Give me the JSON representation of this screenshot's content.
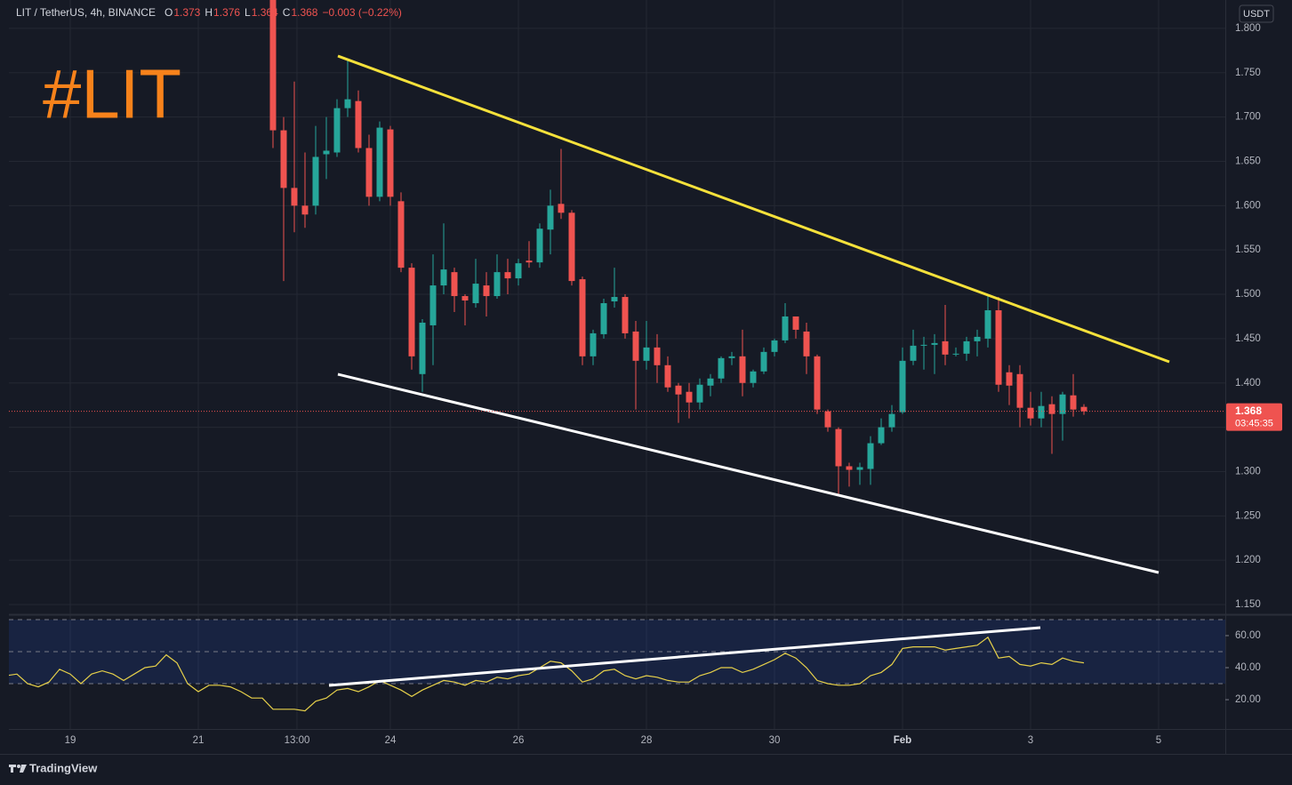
{
  "header": {
    "symbol": "LIT / TetherUS, 4h, BINANCE",
    "ohlc": [
      {
        "key": "O",
        "value": 1.373
      },
      {
        "key": "H",
        "value": 1.376
      },
      {
        "key": "L",
        "value": 1.364
      },
      {
        "key": "C",
        "value": 1.368
      }
    ],
    "change": "−0.003 (−0.22%)"
  },
  "annotation": "#LIT",
  "brand": "TradingView",
  "chart_data": {
    "type": "candlestick",
    "currency": "USDT",
    "xlim": [
      0.25,
      114.25
    ],
    "xticks": [
      {
        "value": 6,
        "label": "19"
      },
      {
        "value": 18,
        "label": "21"
      },
      {
        "value": 27.25,
        "label": "13:00"
      },
      {
        "value": 36,
        "label": "24"
      },
      {
        "value": 48,
        "label": "26"
      },
      {
        "value": 60,
        "label": "28"
      },
      {
        "value": 72,
        "label": "30"
      },
      {
        "value": 84,
        "label": "Feb"
      },
      {
        "value": 96,
        "label": "3"
      },
      {
        "value": 108,
        "label": "5"
      }
    ],
    "ylim": [
      1.14,
      1.832
    ],
    "yticks": [
      {
        "value": 1.8,
        "label": "1.800"
      },
      {
        "value": 1.75,
        "label": "1.750"
      },
      {
        "value": 1.7,
        "label": "1.700"
      },
      {
        "value": 1.65,
        "label": "1.650"
      },
      {
        "value": 1.6,
        "label": "1.600"
      },
      {
        "value": 1.55,
        "label": "1.550"
      },
      {
        "value": 1.5,
        "label": "1.500"
      },
      {
        "value": 1.45,
        "label": "1.450"
      },
      {
        "value": 1.4,
        "label": "1.400"
      },
      {
        "value": 1.35,
        "label": "1.350"
      },
      {
        "value": 1.3,
        "label": "1.300"
      },
      {
        "value": 1.25,
        "label": "1.250"
      },
      {
        "value": 1.2,
        "label": "1.200"
      },
      {
        "value": 1.15,
        "label": "1.150"
      }
    ],
    "grid": true,
    "up_color": "#26a69a",
    "down_color": "#ef5350",
    "series": {
      "open": [
        null,
        null,
        null,
        null,
        null,
        null,
        null,
        null,
        null,
        null,
        null,
        null,
        null,
        null,
        null,
        null,
        null,
        null,
        null,
        null,
        null,
        null,
        null,
        null,
        null,
        1.86,
        1.685,
        1.62,
        1.6,
        1.6,
        1.658,
        1.66,
        1.71,
        1.718,
        1.665,
        1.61,
        1.686,
        1.605,
        1.53,
        1.41,
        1.465,
        1.51,
        1.525,
        1.498,
        1.49,
        1.51,
        1.498,
        1.525,
        1.518,
        1.538,
        1.536,
        1.573,
        1.602,
        1.592,
        1.517,
        1.43,
        1.455,
        1.492,
        1.497,
        1.458,
        1.425,
        1.44,
        1.42,
        1.397,
        1.39,
        1.378,
        1.397,
        1.405,
        1.428,
        1.43,
        1.4,
        1.413,
        1.435,
        1.448,
        1.475,
        1.458,
        1.43,
        1.368,
        1.348,
        1.306,
        1.302,
        1.303,
        1.332,
        1.35,
        1.367,
        1.425,
        1.442,
        1.443,
        1.447,
        1.432,
        1.433,
        1.447,
        1.45,
        1.482,
        1.412,
        1.41,
        1.372,
        1.36,
        1.376,
        1.365,
        1.386,
        1.373
      ],
      "high": [
        null,
        null,
        null,
        null,
        null,
        null,
        null,
        null,
        null,
        null,
        null,
        null,
        null,
        null,
        null,
        null,
        null,
        null,
        null,
        null,
        null,
        null,
        null,
        null,
        null,
        1.88,
        1.7,
        1.74,
        1.66,
        1.69,
        1.7,
        1.72,
        1.765,
        1.73,
        1.68,
        1.695,
        1.69,
        1.615,
        1.535,
        1.472,
        1.545,
        1.58,
        1.53,
        1.5,
        1.54,
        1.525,
        1.545,
        1.54,
        1.54,
        1.56,
        1.58,
        1.618,
        1.664,
        1.595,
        1.52,
        1.46,
        1.495,
        1.53,
        1.5,
        1.47,
        1.47,
        1.455,
        1.43,
        1.4,
        1.4,
        1.405,
        1.41,
        1.43,
        1.435,
        1.46,
        1.415,
        1.44,
        1.45,
        1.49,
        1.475,
        1.468,
        1.432,
        1.37,
        1.35,
        1.31,
        1.31,
        1.34,
        1.36,
        1.375,
        1.44,
        1.46,
        1.452,
        1.455,
        1.488,
        1.44,
        1.452,
        1.46,
        1.5,
        1.497,
        1.42,
        1.42,
        1.39,
        1.39,
        1.385,
        1.39,
        1.41,
        1.376
      ],
      "low": [
        null,
        null,
        null,
        null,
        null,
        null,
        null,
        null,
        null,
        null,
        null,
        null,
        null,
        null,
        null,
        null,
        null,
        null,
        null,
        null,
        null,
        null,
        null,
        null,
        null,
        1.665,
        1.515,
        1.57,
        1.575,
        1.59,
        1.63,
        1.655,
        1.7,
        1.66,
        1.6,
        1.605,
        1.6,
        1.525,
        1.415,
        1.39,
        1.42,
        1.5,
        1.48,
        1.465,
        1.485,
        1.475,
        1.495,
        1.5,
        1.51,
        1.53,
        1.53,
        1.545,
        1.585,
        1.51,
        1.42,
        1.42,
        1.45,
        1.485,
        1.45,
        1.37,
        1.415,
        1.4,
        1.39,
        1.355,
        1.36,
        1.37,
        1.385,
        1.4,
        1.42,
        1.385,
        1.395,
        1.41,
        1.43,
        1.445,
        1.45,
        1.41,
        1.365,
        1.345,
        1.275,
        1.283,
        1.285,
        1.285,
        1.33,
        1.345,
        1.365,
        1.42,
        1.415,
        1.41,
        1.42,
        1.43,
        1.425,
        1.43,
        1.44,
        1.39,
        1.375,
        1.35,
        1.352,
        1.35,
        1.32,
        1.335,
        1.362,
        1.364
      ],
      "close": [
        null,
        null,
        null,
        null,
        null,
        null,
        null,
        null,
        null,
        null,
        null,
        null,
        null,
        null,
        null,
        null,
        null,
        null,
        null,
        null,
        null,
        null,
        null,
        null,
        null,
        1.685,
        1.62,
        1.6,
        1.59,
        1.655,
        1.662,
        1.71,
        1.72,
        1.665,
        1.61,
        1.688,
        1.61,
        1.53,
        1.43,
        1.468,
        1.51,
        1.528,
        1.498,
        1.493,
        1.512,
        1.498,
        1.525,
        1.518,
        1.535,
        1.536,
        1.574,
        1.6,
        1.592,
        1.515,
        1.43,
        1.456,
        1.49,
        1.497,
        1.456,
        1.425,
        1.44,
        1.42,
        1.395,
        1.387,
        1.378,
        1.398,
        1.405,
        1.428,
        1.43,
        1.4,
        1.413,
        1.435,
        1.448,
        1.475,
        1.46,
        1.43,
        1.37,
        1.35,
        1.306,
        1.302,
        1.305,
        1.332,
        1.35,
        1.365,
        1.425,
        1.442,
        1.443,
        1.445,
        1.432,
        1.433,
        1.447,
        1.452,
        1.482,
        1.398,
        1.397,
        1.372,
        1.36,
        1.374,
        1.365,
        1.387,
        1.37,
        1.368
      ]
    },
    "last_price": 1.368,
    "countdown": "03:45:35",
    "rsi": {
      "color": "#e6d04a",
      "ylim": [
        1.7,
        72.2
      ],
      "yticks": [
        {
          "value": 60,
          "label": "60.00"
        },
        {
          "value": 40,
          "label": "40.00"
        },
        {
          "value": 20,
          "label": "20.00"
        }
      ],
      "levels": [
        70,
        50,
        30
      ],
      "values": [
        35,
        36,
        30,
        28,
        31,
        39,
        36,
        30,
        36,
        38,
        36,
        32,
        36,
        40,
        41,
        48,
        43,
        30,
        25,
        29,
        29,
        28,
        25,
        21,
        21,
        14,
        14,
        14,
        13,
        19,
        21,
        26,
        27,
        25,
        28,
        32,
        29,
        26,
        22,
        26,
        29,
        32,
        31,
        29,
        32,
        31,
        34,
        33,
        35,
        36,
        40,
        44,
        43,
        38,
        31,
        33,
        38,
        39,
        35,
        33,
        35,
        34,
        32,
        31,
        31,
        35,
        37,
        40,
        40,
        37,
        39,
        42,
        45,
        49,
        46,
        40,
        32,
        30,
        29,
        29,
        30,
        35,
        37,
        42,
        52,
        53,
        53,
        53,
        51,
        52,
        53,
        54,
        59,
        46,
        47,
        42,
        41,
        43,
        42,
        46,
        44,
        43
      ]
    }
  }
}
